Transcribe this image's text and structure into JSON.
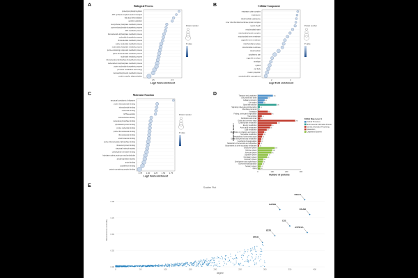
{
  "panels": {
    "A": {
      "letter": "A",
      "title": "Biological Process",
      "xlabel": "Log2 Fold enrichment"
    },
    "B": {
      "letter": "B",
      "title": "Cellular Component",
      "xlabel": "Log2 Fold enrichment"
    },
    "C": {
      "letter": "C",
      "title": "Molecular Function",
      "xlabel": "Log2 Fold enrichment"
    },
    "D": {
      "letter": "D",
      "title": "",
      "xlabel": "Number of proteins",
      "ylabel": "KEGG Map Level 2"
    },
    "E": {
      "letter": "E",
      "title": "Scatter Plot",
      "xlabel": "degree",
      "ylabel": "Betweenness centrality"
    }
  },
  "legend_labels": {
    "size_title": "Protein number",
    "color_title": "P value",
    "kegg_title": "KEGG Map Level 1"
  },
  "colors": {
    "dot_dark": "#1f4e8c",
    "dot_light": "#c7d7ea",
    "cellular_processes": "#4c8fc8",
    "environmental_info": "#2a9d8f",
    "genetic_info": "#c0392b",
    "metabolism": "#c0392b",
    "organismal_systems": "#8cbf3f",
    "scatter": "#2e86c1"
  },
  "chart_data": [
    {
      "type": "scatter",
      "name": "Biological Process",
      "categories": [
        "proteolysis phosphorylation",
        "ATP synthesis coupled electron transport",
        "fatty acid beta-oxidation",
        "aerobic respiration",
        "deoxyribose phosphate metabolic process",
        "purine ribonucleotide biosynthetic process",
        "ATP metabolic process",
        "ribonucleoside triphosphate metabolic process",
        "nucleotide biosynthetic process",
        "ribonucleotide metabolic process",
        "purine nucleotide metabolic process",
        "nucleoside phosphate metabolic process",
        "purine-containing compound metabolic process",
        "purine ribonucleotide metabolic process",
        "nucleotide metabolic process",
        "ribonucleoside triphosphate biosynthetic process",
        "nucleoside monophosphate metabolic process",
        "purine nucleotide biosynthetic process",
        "precursor metabolites and energy",
        "monocarboxylic acid metabolic process",
        "protein complex oligomerization"
      ],
      "x": [
        3.4,
        3.2,
        3.0,
        2.9,
        2.5,
        2.45,
        2.4,
        2.3,
        2.25,
        2.2,
        2.1,
        2.05,
        2.0,
        1.95,
        1.9,
        1.85,
        1.8,
        1.75,
        1.6,
        1.5,
        1.2
      ],
      "size": [
        2,
        2,
        3,
        3,
        3,
        3,
        4,
        4,
        4,
        4,
        5,
        5,
        5,
        5,
        5,
        5,
        6,
        6,
        6,
        6,
        7
      ],
      "xlim": [
        0.8,
        3.6
      ],
      "ticks": [
        "1.5",
        "2.5"
      ]
    },
    {
      "type": "scatter",
      "name": "Cellular Component",
      "categories": [
        "respiratory chain complex",
        "respirasome",
        "mitochondrial respirasome",
        "inner mitochondrial membrane protein complex",
        "myelin sheath",
        "mitochondrial matrix",
        "mitochondrial protein complex",
        "mitochondrial inner membrane",
        "organelle inner membrane",
        "mitochondrial envelope",
        "mitochondrial membrane",
        "mitochondrion",
        "cytoplasmic part",
        "organelle envelope",
        "envelope",
        "cytosol",
        "cell body",
        "neuron projection",
        "somatodendritic compartment"
      ],
      "x": [
        4.6,
        4.55,
        4.5,
        4.45,
        4.4,
        4.2,
        4.0,
        3.8,
        3.6,
        3.5,
        3.4,
        3.1,
        2.8,
        2.6,
        2.5,
        2.4,
        2.3,
        2.2,
        2.1
      ],
      "size": [
        2,
        2,
        2,
        2,
        3,
        3,
        3,
        4,
        4,
        4,
        4,
        5,
        6,
        4,
        4,
        5,
        5,
        5,
        5
      ],
      "xlim": [
        1.8,
        4.8
      ],
      "ticks": [
        "2",
        "4"
      ]
    },
    {
      "type": "scatter",
      "name": "Molecular Function",
      "categories": [
        "structural constituent of ribosome",
        "purine ribonucleotide binding",
        "ribonucleotide binding",
        "nucleotide binding",
        "GTPase activity",
        "oxidoreductase activity",
        "nucleoside phosphate binding",
        "cytoskeletal protein binding",
        "purine nucleotide binding",
        "purine ribonucleoside binding",
        "ribonucleoside binding",
        "small molecule binding",
        "purine ribonucleoside triphosphate binding",
        "ribosomal protein binding",
        "structural molecule activity",
        "carbohydrate derivative binding",
        "hydrolase activity, acting on acid anhydrides",
        "pyrophosphatase activity",
        "anion binding",
        "cytoskeleton binding",
        "protein-containing complex binding"
      ],
      "x": [
        1.95,
        1.4,
        1.38,
        1.36,
        1.34,
        1.2,
        1.18,
        1.16,
        1.15,
        1.14,
        1.13,
        1.12,
        1.1,
        1.08,
        1.06,
        1.04,
        1.0,
        0.98,
        0.95,
        0.9,
        0.8
      ],
      "size": [
        2,
        4,
        4,
        4,
        3,
        4,
        5,
        4,
        5,
        5,
        5,
        5,
        6,
        5,
        5,
        6,
        6,
        6,
        6,
        6,
        7
      ],
      "xlim": [
        0.7,
        2.0
      ],
      "ticks": [
        "0.75",
        "1.00",
        "1.25",
        "1.50",
        "1.75"
      ]
    },
    {
      "type": "bar",
      "name": "KEGG",
      "categories": [
        "Transport and catabolism",
        "Cell growth and death",
        "Cellular community",
        "Cell motility",
        "Signal transduction",
        "Signaling molecules and interaction",
        "Membrane transport",
        "Translation",
        "Folding, sorting and degradation",
        "Transcription",
        "Replication and repair",
        "Global and overview maps",
        "Carbohydrate metabolism",
        "Energy metabolism",
        "Amino acid metabolism",
        "Lipid metabolism",
        "Metabolism of cofactors and vitamins",
        "Nucleotide metabolism",
        "Metabolism of other amino acids",
        "Glycan biosynthesis and metabolism",
        "Xenobiotics biodegradation",
        "Metabolism of terpenoids and polyketides",
        "Biosynthesis of other secondary metabolites",
        "Endocrine system",
        "Immune system",
        "Nervous system",
        "Digestive system",
        "Circulatory system",
        "Excretory system",
        "Development and regeneration",
        "Environmental adaptation",
        "Sensory system",
        "Aging"
      ],
      "values": [
        105,
        70,
        48,
        40,
        130,
        15,
        5,
        70,
        95,
        28,
        18,
        260,
        135,
        95,
        85,
        62,
        45,
        38,
        30,
        25,
        22,
        15,
        10,
        118,
        102,
        95,
        72,
        65,
        40,
        36,
        30,
        22,
        18
      ],
      "group": [
        0,
        0,
        0,
        0,
        1,
        1,
        1,
        2,
        2,
        2,
        2,
        3,
        3,
        3,
        3,
        3,
        3,
        3,
        3,
        3,
        3,
        3,
        3,
        4,
        4,
        4,
        4,
        4,
        4,
        4,
        4,
        4,
        4
      ],
      "legend": [
        "Cellular Processes",
        "Environmental Information Processing",
        "Genetic Information Processing",
        "Metabolism",
        "Organismal Systems"
      ],
      "ticks": [
        "0",
        "100",
        "200",
        "300"
      ],
      "xlim": [
        0,
        300
      ]
    },
    {
      "type": "scatter",
      "name": "Scatter Plot",
      "labeled_points": [
        {
          "label": "USAC1",
          "x": 380,
          "y": 0.082
        },
        {
          "label": "GAPDH",
          "x": 330,
          "y": 0.07
        },
        {
          "label": "PALM2",
          "x": 390,
          "y": 0.064
        },
        {
          "label": "CS2",
          "x": 350,
          "y": 0.05
        },
        {
          "label": "ATP5F1A",
          "x": 385,
          "y": 0.042
        },
        {
          "label": "EEF2",
          "x": 320,
          "y": 0.038
        },
        {
          "label": "MYH1",
          "x": 295,
          "y": 0.03
        }
      ],
      "xlim": [
        0,
        420
      ],
      "ylim": [
        0,
        0.09
      ],
      "xticks": [
        "0",
        "50",
        "100",
        "150",
        "200",
        "250",
        "300",
        "350",
        "400"
      ],
      "yticks": [
        "0.00",
        "0.02",
        "0.04",
        "0.06",
        "0.08"
      ]
    }
  ]
}
